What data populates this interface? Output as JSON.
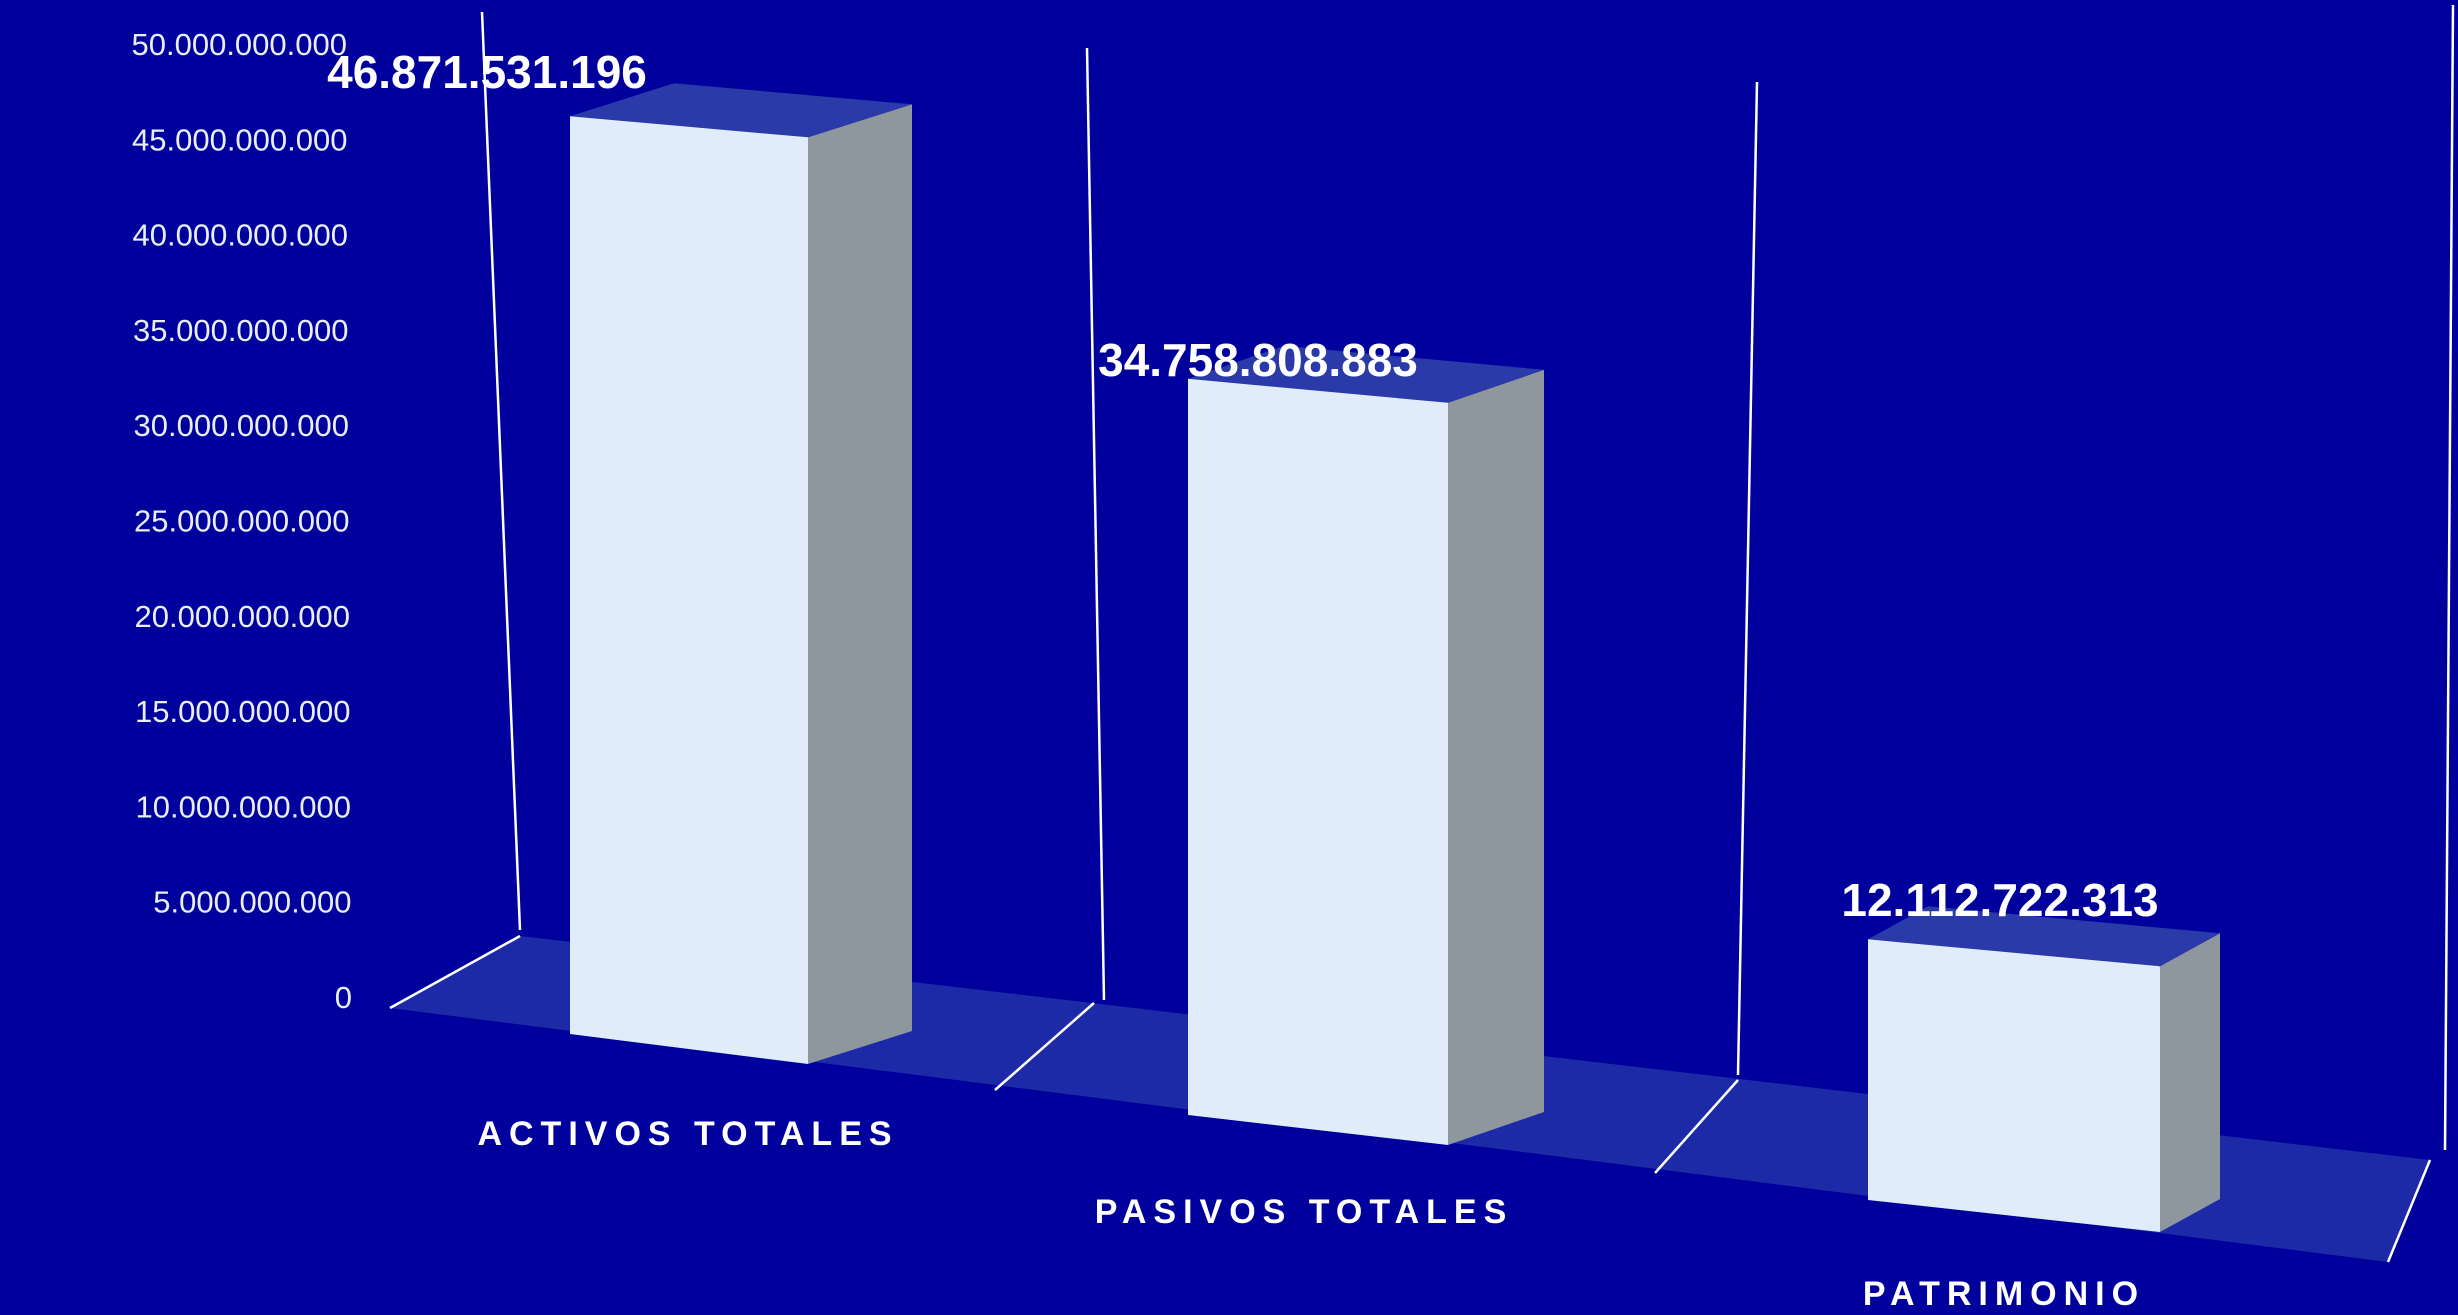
{
  "chart_data": {
    "type": "bar",
    "categories": [
      "ACTIVOS TOTALES",
      "PASIVOS TOTALES",
      "PATRIMONIO"
    ],
    "values": [
      46871531196,
      34758808883,
      12112722313
    ],
    "data_labels": [
      "46.871.531.196",
      "34.758.808.883",
      "12.112.722.313"
    ],
    "y_ticks": [
      "0",
      "5.000.000.000",
      "10.000.000.000",
      "15.000.000.000",
      "20.000.000.000",
      "25.000.000.000",
      "30.000.000.000",
      "35.000.000.000",
      "40.000.000.000",
      "45.000.000.000",
      "50.000.000.000"
    ],
    "ylim": [
      0,
      50000000000
    ],
    "grid": false,
    "style": "3d-column",
    "colors": {
      "background": "#00009c",
      "floor": "#1c2aa8",
      "bar_front": "#e1ecfa",
      "bar_side": "#8e979e",
      "bar_top": "#2a3aa8",
      "wall_line": "#ffffff",
      "text": "#ffffff"
    }
  }
}
